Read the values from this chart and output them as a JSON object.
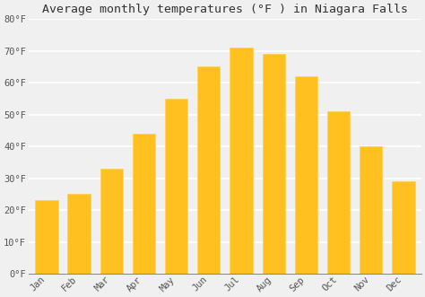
{
  "title": "Average monthly temperatures (°F ) in Niagara Falls",
  "months": [
    "Jan",
    "Feb",
    "Mar",
    "Apr",
    "May",
    "Jun",
    "Jul",
    "Aug",
    "Sep",
    "Oct",
    "Nov",
    "Dec"
  ],
  "values": [
    23,
    25,
    33,
    44,
    55,
    65,
    71,
    69,
    62,
    51,
    40,
    29
  ],
  "bar_color": "#FFC020",
  "bar_edge_color": "#FFD060",
  "ylim": [
    0,
    80
  ],
  "yticks": [
    0,
    10,
    20,
    30,
    40,
    50,
    60,
    70,
    80
  ],
  "ytick_labels": [
    "0°F",
    "10°F",
    "20°F",
    "30°F",
    "40°F",
    "50°F",
    "60°F",
    "70°F",
    "80°F"
  ],
  "background_color": "#f0f0f0",
  "grid_color": "#ffffff",
  "title_fontsize": 9.5,
  "tick_fontsize": 7.5,
  "bar_width": 0.7
}
